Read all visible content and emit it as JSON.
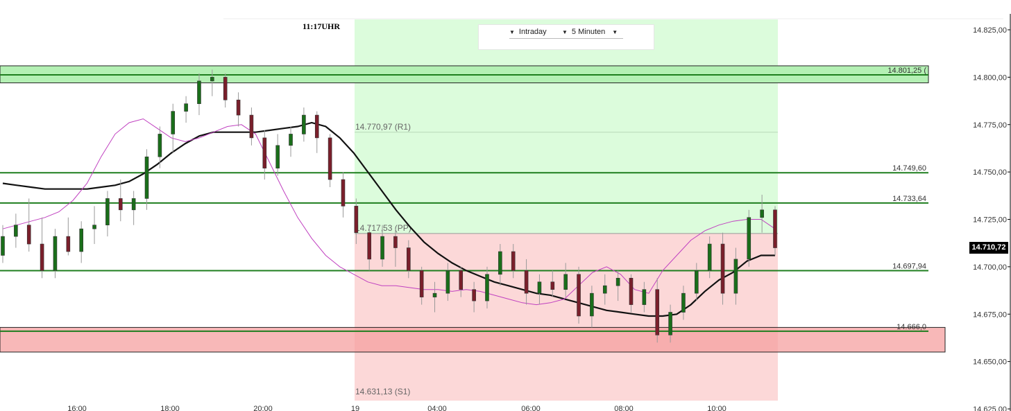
{
  "header": {
    "time_label": "11:17UHR",
    "period_dropdown": "Intraday",
    "interval_dropdown": "5 Minuten"
  },
  "current_price": "14.710,72",
  "chart_data": {
    "type": "candlestick",
    "y_axis": {
      "range": [
        14625,
        14835
      ],
      "tick_labels": [
        "14.625,00",
        "14.650,00",
        "14.675,00",
        "14.700,00",
        "14.725,00",
        "14.750,00",
        "14.775,00",
        "14.800,00",
        "14.825,00"
      ],
      "tick_values": [
        14625,
        14650,
        14675,
        14700,
        14725,
        14750,
        14775,
        14800,
        14825
      ]
    },
    "x_axis": {
      "tick_labels": [
        "16:00",
        "18:00",
        "20:00",
        "19",
        "04:00",
        "06:00",
        "08:00",
        "10:00"
      ]
    },
    "horizontal_levels": [
      {
        "label": "14.801,25 (",
        "value": 14801.25
      },
      {
        "label": "14.749,60",
        "value": 14749.6
      },
      {
        "label": "14.733,64",
        "value": 14733.64
      },
      {
        "label": "14.697,94",
        "value": 14697.94
      },
      {
        "label": "14.666,0",
        "value": 14666.0
      }
    ],
    "pivot_levels": [
      {
        "label": "14.770,97 (R1)",
        "value": 14770.97
      },
      {
        "label": "14.717,53 (PP)",
        "value": 14717.53
      },
      {
        "label": "14.631,13 (S1)",
        "value": 14631.13
      }
    ],
    "resistance_zone": [
      14797,
      14806
    ],
    "support_zone": [
      14655,
      14668
    ],
    "colors": {
      "up": "#1a6e1a",
      "down": "#7a1f2b",
      "level_line": "#1e7e1e",
      "zone_green": "#b4f0b4",
      "zone_red": "#f5a0a0",
      "pivot_green": "#dcfcdc",
      "pivot_red": "#fcd8d8",
      "ma_slow": "#111111",
      "ma_fast": "#c040c0"
    },
    "moving_averages": [
      {
        "values": [
          14744,
          14743,
          14742,
          14741,
          14741,
          14741,
          14741,
          14742,
          14743,
          14745,
          14749,
          14754,
          14760,
          14765,
          14769,
          14771,
          14771,
          14771,
          14771,
          14772,
          14773,
          14774,
          14776,
          14774,
          14768,
          14760,
          14750,
          14740,
          14730,
          14721,
          14713,
          14707,
          14702,
          14698,
          14695,
          14692,
          14690,
          14688,
          14686,
          14685,
          14683,
          14681,
          14679,
          14677,
          14676,
          14675,
          14674,
          14674,
          14675,
          14680,
          14687,
          14693,
          14697,
          14703,
          14706,
          14706
        ]
      },
      {
        "values": [
          14720,
          14722,
          14724,
          14726,
          14729,
          14735,
          14744,
          14758,
          14770,
          14776,
          14778,
          14773,
          14768,
          14766,
          14768,
          14771,
          14774,
          14775,
          14770,
          14755,
          14740,
          14726,
          14715,
          14706,
          14700,
          14696,
          14692,
          14690,
          14690,
          14689,
          14688,
          14688,
          14687,
          14688,
          14687,
          14685,
          14683,
          14681,
          14680,
          14681,
          14683,
          14690,
          14697,
          14700,
          14696,
          14688,
          14686,
          14698,
          14706,
          14714,
          14719,
          14722,
          14724,
          14725,
          14725,
          14720
        ]
      }
    ],
    "candles": [
      [
        14706,
        14722,
        14702,
        14716
      ],
      [
        14716,
        14728,
        14710,
        14722
      ],
      [
        14722,
        14736,
        14708,
        14712
      ],
      [
        14712,
        14726,
        14694,
        14698
      ],
      [
        14698,
        14720,
        14694,
        14716
      ],
      [
        14716,
        14726,
        14706,
        14708
      ],
      [
        14708,
        14724,
        14702,
        14720
      ],
      [
        14720,
        14732,
        14712,
        14722
      ],
      [
        14722,
        14740,
        14716,
        14736
      ],
      [
        14736,
        14746,
        14724,
        14730
      ],
      [
        14730,
        14740,
        14722,
        14736
      ],
      [
        14736,
        14762,
        14730,
        14758
      ],
      [
        14758,
        14774,
        14752,
        14770
      ],
      [
        14770,
        14786,
        14760,
        14782
      ],
      [
        14782,
        14790,
        14776,
        14786
      ],
      [
        14786,
        14802,
        14780,
        14798
      ],
      [
        14798,
        14804,
        14790,
        14800
      ],
      [
        14800,
        14802,
        14784,
        14788
      ],
      [
        14788,
        14792,
        14774,
        14780
      ],
      [
        14780,
        14784,
        14764,
        14768
      ],
      [
        14768,
        14772,
        14746,
        14752
      ],
      [
        14752,
        14770,
        14748,
        14764
      ],
      [
        14764,
        14774,
        14758,
        14770
      ],
      [
        14770,
        14784,
        14766,
        14780
      ],
      [
        14780,
        14782,
        14760,
        14768
      ],
      [
        14768,
        14770,
        14742,
        14746
      ],
      [
        14746,
        14750,
        14726,
        14732
      ],
      [
        14732,
        14736,
        14712,
        14718
      ],
      [
        14718,
        14722,
        14698,
        14704
      ],
      [
        14704,
        14722,
        14700,
        14716
      ],
      [
        14716,
        14720,
        14700,
        14710
      ],
      [
        14710,
        14714,
        14694,
        14698
      ],
      [
        14698,
        14700,
        14680,
        14684
      ],
      [
        14684,
        14692,
        14676,
        14686
      ],
      [
        14686,
        14702,
        14682,
        14698
      ],
      [
        14698,
        14700,
        14684,
        14688
      ],
      [
        14688,
        14692,
        14676,
        14682
      ],
      [
        14682,
        14700,
        14678,
        14696
      ],
      [
        14696,
        14712,
        14690,
        14708
      ],
      [
        14708,
        14712,
        14694,
        14698
      ],
      [
        14698,
        14704,
        14680,
        14686
      ],
      [
        14686,
        14696,
        14680,
        14692
      ],
      [
        14692,
        14698,
        14684,
        14688
      ],
      [
        14688,
        14702,
        14684,
        14696
      ],
      [
        14696,
        14700,
        14670,
        14674
      ],
      [
        14674,
        14690,
        14668,
        14686
      ],
      [
        14686,
        14696,
        14680,
        14690
      ],
      [
        14690,
        14698,
        14682,
        14694
      ],
      [
        14694,
        14696,
        14676,
        14680
      ],
      [
        14680,
        14692,
        14676,
        14688
      ],
      [
        14688,
        14694,
        14660,
        14664
      ],
      [
        14664,
        14680,
        14660,
        14676
      ],
      [
        14676,
        14690,
        14672,
        14686
      ],
      [
        14686,
        14702,
        14682,
        14698
      ],
      [
        14698,
        14716,
        14694,
        14712
      ],
      [
        14712,
        14718,
        14680,
        14686
      ],
      [
        14686,
        14710,
        14680,
        14704
      ],
      [
        14704,
        14730,
        14700,
        14726
      ],
      [
        14726,
        14738,
        14718,
        14730
      ],
      [
        14730,
        14732,
        14706,
        14710
      ]
    ]
  }
}
